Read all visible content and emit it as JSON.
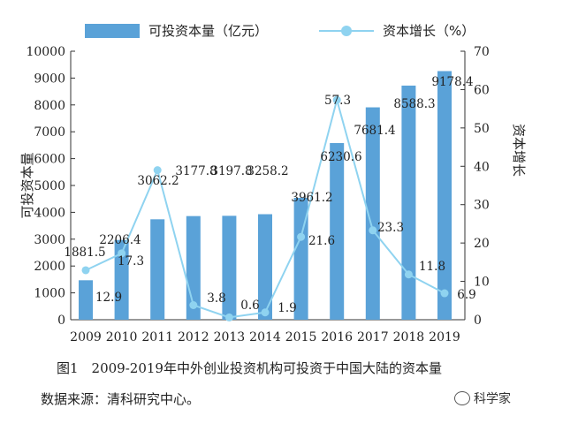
{
  "legend": {
    "bar_label": "可投资本量（亿元）",
    "line_label": "资本增长（%）"
  },
  "caption": "图1　2009-2019年中外创业投资机构可投资于中国大陆的资本量",
  "source": "数据来源：清科研究中心。",
  "watermark": "科学家",
  "colors": {
    "bar": "#5aa2d8",
    "line": "#8fd3f0"
  },
  "chart_data": {
    "type": "bar",
    "categories": [
      "2009",
      "2010",
      "2011",
      "2012",
      "2013",
      "2014",
      "2015",
      "2016",
      "2017",
      "2018",
      "2019"
    ],
    "series": [
      {
        "name": "可投资本量（亿元）",
        "type": "bar",
        "axis": "left",
        "values": [
          1881.5,
          2206.4,
          3062.2,
          3177.8,
          3197.8,
          3258.2,
          3961.2,
          6230.6,
          7681.4,
          8588.3,
          9178.4
        ],
        "labels": [
          "1881.5",
          "2206.4",
          "3062.2",
          "3177.8",
          "3197.8",
          "3258.2",
          "3961.2",
          "6230.6",
          "7681.4",
          "8588.3",
          "9178.4"
        ],
        "bar_heights_read": [
          1470,
          2970,
          3740,
          3860,
          3870,
          3930,
          4540,
          6580,
          7910,
          8720,
          9260
        ]
      },
      {
        "name": "资本增长（%）",
        "type": "line",
        "axis": "right",
        "values": [
          12.9,
          17.3,
          39.0,
          3.8,
          0.6,
          1.9,
          21.6,
          57.3,
          23.3,
          11.8,
          6.9
        ],
        "labels": [
          "12.9",
          "17.3",
          "",
          "3.8",
          "0.6",
          "1.9",
          "21.6",
          "57.3",
          "23.3",
          "11.8",
          "6.9"
        ]
      }
    ],
    "ylabel": "可投资本量",
    "y2label": "资本增长",
    "ylim": [
      0,
      10000
    ],
    "yticks": [
      0,
      1000,
      2000,
      3000,
      4000,
      5000,
      6000,
      7000,
      8000,
      9000,
      10000
    ],
    "y2lim": [
      0,
      70
    ],
    "y2ticks": [
      0,
      10,
      20,
      30,
      40,
      50,
      60,
      70
    ],
    "grid": false,
    "legend_position": "top"
  }
}
